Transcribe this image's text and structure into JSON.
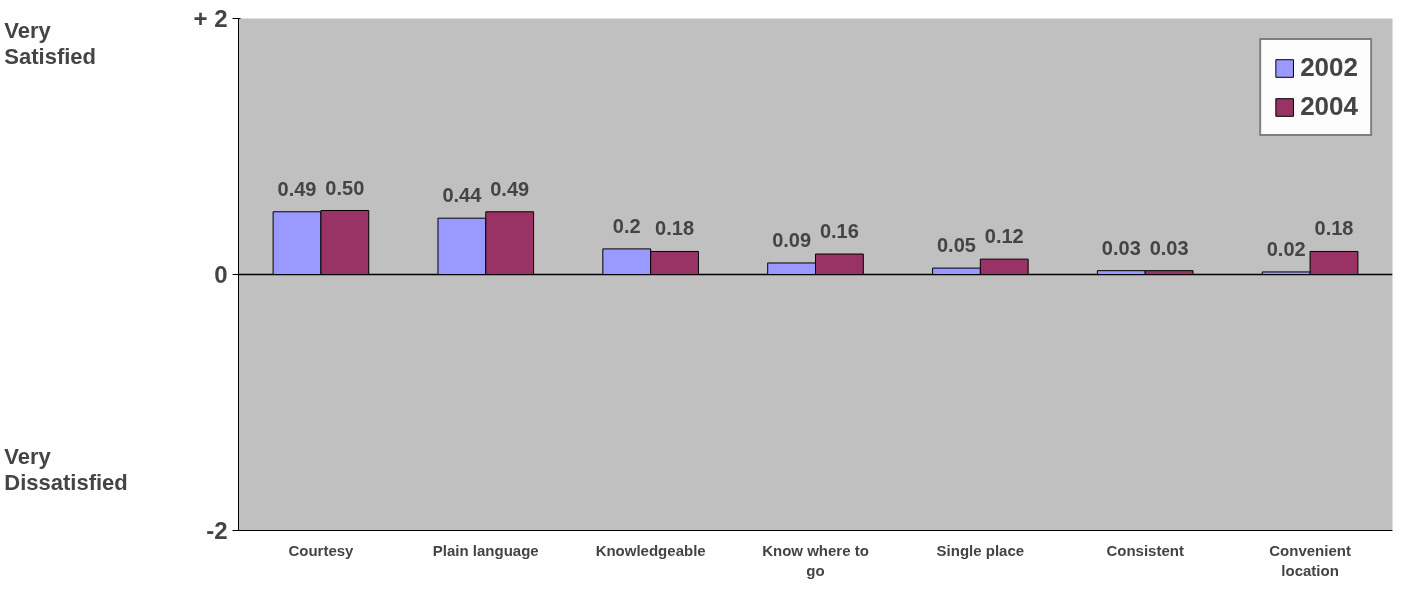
{
  "chart_data": {
    "type": "bar",
    "categories": [
      "Courtesy",
      "Plain language",
      "Knowledgeable",
      "Know where to go",
      "Single place",
      "Consistent",
      "Convenient location"
    ],
    "series": [
      {
        "name": "2002",
        "color": "#9999ff",
        "values": [
          0.49,
          0.44,
          0.2,
          0.09,
          0.05,
          0.03,
          0.02
        ]
      },
      {
        "name": "2004",
        "color": "#993366",
        "values": [
          0.5,
          0.49,
          0.18,
          0.16,
          0.12,
          0.03,
          0.18
        ]
      }
    ],
    "value_labels": [
      [
        "0.49",
        "0.44",
        "0.2",
        "0.09",
        "0.05",
        "0.03",
        "0.02"
      ],
      [
        "0.50",
        "0.49",
        "0.18",
        "0.16",
        "0.12",
        "0.03",
        "0.18"
      ]
    ],
    "ylim": [
      -2,
      2
    ],
    "yticks": [
      {
        "value": -2,
        "label": "-2"
      },
      {
        "value": 0,
        "label": "0"
      },
      {
        "value": 2,
        "label": "+ 2"
      }
    ],
    "annotations": [
      "Very Satisfied",
      "Very Dissatisfied"
    ],
    "grid": "y",
    "legend": "top right"
  }
}
